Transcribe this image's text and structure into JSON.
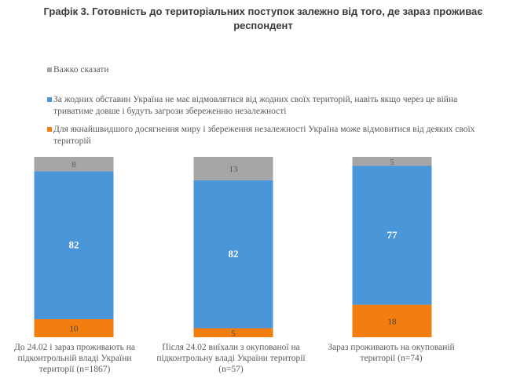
{
  "title": "Графік 3. Готовність до територіальних поступок залежно від того, де зараз проживає респондент",
  "chart_data": {
    "type": "bar",
    "stacked": true,
    "categories": [
      "До 24.02 і зараз проживають на підконтрольній владі України території (n=1867)",
      "Після 24.02 виїхали з окупованої на підконтрольну владі України території (n=57)",
      "Зараз проживають на окупованій території (n=74)"
    ],
    "series": [
      {
        "name": "Для якнайшвидшого досягнення миру і збереження незалежності Україна може відмовитися від деяких своїх територій",
        "color": "#f27e10",
        "values": [
          10,
          5,
          18
        ]
      },
      {
        "name": "За жодних обставин Україна не має відмовлятися від жодних своїх територій, навіть якщо через це війна триватиме довше і будуть загрози збереженню незалежності",
        "color": "#4a96d9",
        "values": [
          82,
          82,
          77
        ]
      },
      {
        "name": "Важко сказати",
        "color": "#a6a6a6",
        "values": [
          8,
          13,
          5
        ]
      }
    ],
    "legend_position": "top",
    "grid": false
  }
}
